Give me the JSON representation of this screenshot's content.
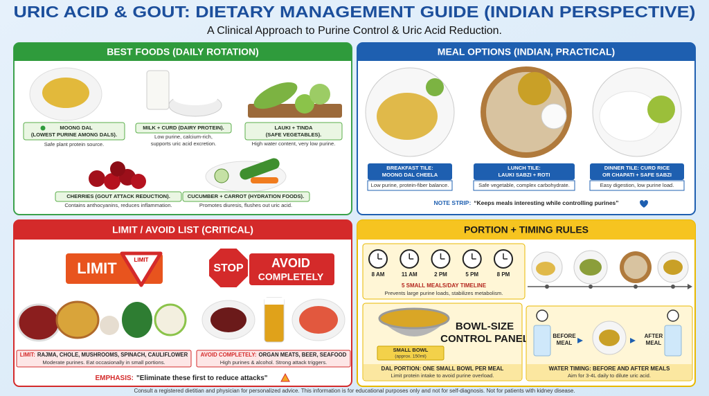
{
  "header": {
    "title": "URIC ACID & GOUT: DIETARY MANAGEMENT GUIDE (INDIAN PERSPECTIVE)",
    "subtitle": "A Clinical Approach to Purine Control & Uric Acid Reduction."
  },
  "best_foods": {
    "heading": "BEST FOODS (DAILY ROTATION)",
    "items": [
      {
        "title": [
          "MOONG DAL",
          "(LOWEST PURINE AMONG DALS)."
        ],
        "desc": [
          "Safe plant protein source."
        ]
      },
      {
        "title": [
          "MILK + CURD (DAIRY PROTEIN)."
        ],
        "desc": [
          "Low purine, calcium-rich,",
          "supports uric acid excretion."
        ]
      },
      {
        "title": [
          "LAUKI + TINDA",
          "(SAFE VEGETABLES)."
        ],
        "desc": [
          "High water content, very low purine."
        ]
      },
      {
        "title": [
          "CHERRIES (GOUT ATTACK REDUCTION)."
        ],
        "desc": [
          "Contains anthocyanins, reduces inflammation."
        ]
      },
      {
        "title": [
          "CUCUMBER + CARROT (HYDRATION FOODS)."
        ],
        "desc": [
          "Promotes diuresis, flushes out uric acid."
        ]
      }
    ]
  },
  "meal_options": {
    "heading": "MEAL OPTIONS (INDIAN, PRACTICAL)",
    "tiles": [
      {
        "title": [
          "BREAKFAST TILE:",
          "MOONG DAL CHEELA"
        ],
        "desc": "Low purine, protein-fiber balance."
      },
      {
        "title": [
          "LUNCH TILE:",
          "LAUKI SABZI + ROTI"
        ],
        "desc": "Safe vegetable, complex carbohydrate."
      },
      {
        "title": [
          "DINNER TILE: CURD RICE",
          "OR CHAPATI + SAFE SABZI"
        ],
        "desc": "Easy digestion, low purine load."
      }
    ],
    "note": {
      "label": "NOTE STRIP:",
      "text": "“Keeps meals interesting while controlling purines”"
    }
  },
  "limit_avoid": {
    "heading": "LIMIT / AVOID LIST (CRITICAL)",
    "limit_badge": "LIMIT",
    "limit_sign": "LIMIT",
    "stop_sign": "STOP",
    "avoid_badge": [
      "AVOID",
      "COMPLETELY"
    ],
    "limit_box": {
      "label": "LIMIT:",
      "text": "RAJMA, CHOLE, MUSHROOMS, SPINACH, CAULIFLOWER",
      "desc": "Moderate purines. Eat occasionally in small portions."
    },
    "avoid_box": {
      "label": "AVOID COMPLETELY:",
      "text": "ORGAN MEATS, BEER, SEAFOOD",
      "desc": "High purines & alcohol. Strong attack triggers."
    },
    "emphasis": {
      "label": "EMPHASIS:",
      "text": "\"Eliminate these first to reduce attacks\""
    }
  },
  "portion": {
    "heading": "PORTION + TIMING RULES",
    "times": [
      "8 AM",
      "11 AM",
      "2 PM",
      "5 PM",
      "8 PM"
    ],
    "timeline": {
      "title": "5 SMALL MEALS/DAY TIMELINE",
      "desc": "Prevents large purine loads, stabilizes metabolism."
    },
    "bowl": {
      "title": [
        "BOWL-SIZE",
        "CONTROL PANEL"
      ],
      "label": "SMALL BOWL",
      "sub": "(approx. 150ml)",
      "caption": "DAL PORTION: ONE SMALL BOWL PER MEAL",
      "desc": "Limit protein intake to avoid purine overload."
    },
    "water": {
      "before": [
        "BEFORE",
        "MEAL"
      ],
      "after": [
        "AFTER",
        "MEAL"
      ],
      "caption": "WATER TIMING: BEFORE AND AFTER MEALS",
      "desc": "Aim for 3-4L daily to dilute uric acid."
    }
  },
  "footer": "Consult a registered dietitian and physician for personalized advice. This information is for educational purposes only and not for self-diagnosis. Not for patients with kidney disease."
}
